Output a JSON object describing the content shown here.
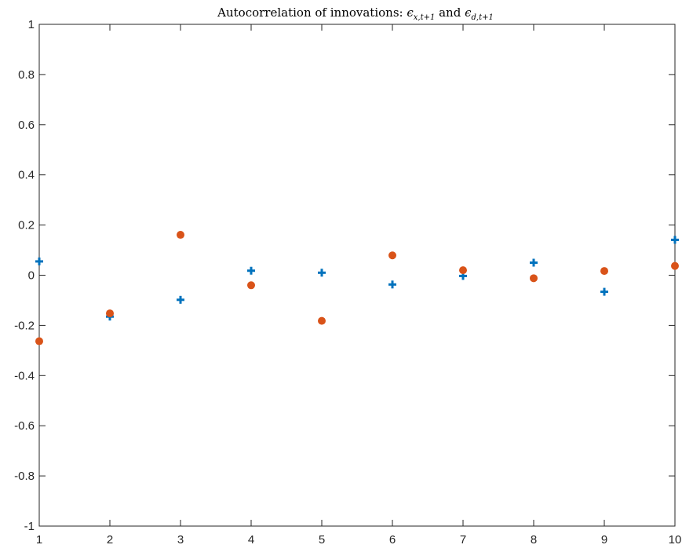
{
  "chart_data": {
    "type": "scatter",
    "title": "Autocorrelation of innovations: ϵx,t+1 and ϵd,t+1",
    "title_parts": {
      "prefix": "Autocorrelation of innovations: ",
      "sym1": "ϵ",
      "sub1": "x,t+1",
      "mid": " and ",
      "sym2": "ϵ",
      "sub2": "d,t+1"
    },
    "xlabel": "",
    "ylabel": "",
    "xlim": [
      1,
      10
    ],
    "ylim": [
      -1,
      1
    ],
    "xticks": [
      "1",
      "2",
      "3",
      "4",
      "5",
      "6",
      "7",
      "8",
      "9",
      "10"
    ],
    "yticks": [
      "-1",
      "-0.8",
      "-0.6",
      "-0.4",
      "-0.2",
      "0",
      "0.2",
      "0.4",
      "0.6",
      "0.8",
      "1"
    ],
    "grid": false,
    "legend": false,
    "series": [
      {
        "marker": "plus",
        "color": "#0072BD",
        "x": [
          1,
          2,
          3,
          4,
          5,
          6,
          7,
          8,
          9,
          10
        ],
        "y": [
          0.055,
          -0.165,
          -0.098,
          0.018,
          0.01,
          -0.037,
          -0.003,
          0.05,
          -0.066,
          0.141
        ]
      },
      {
        "marker": "circle",
        "color": "#D95319",
        "x": [
          1,
          2,
          3,
          4,
          5,
          6,
          7,
          8,
          9,
          10
        ],
        "y": [
          -0.263,
          -0.152,
          0.161,
          -0.04,
          -0.182,
          0.079,
          0.02,
          -0.012,
          0.017,
          0.037
        ]
      }
    ]
  }
}
